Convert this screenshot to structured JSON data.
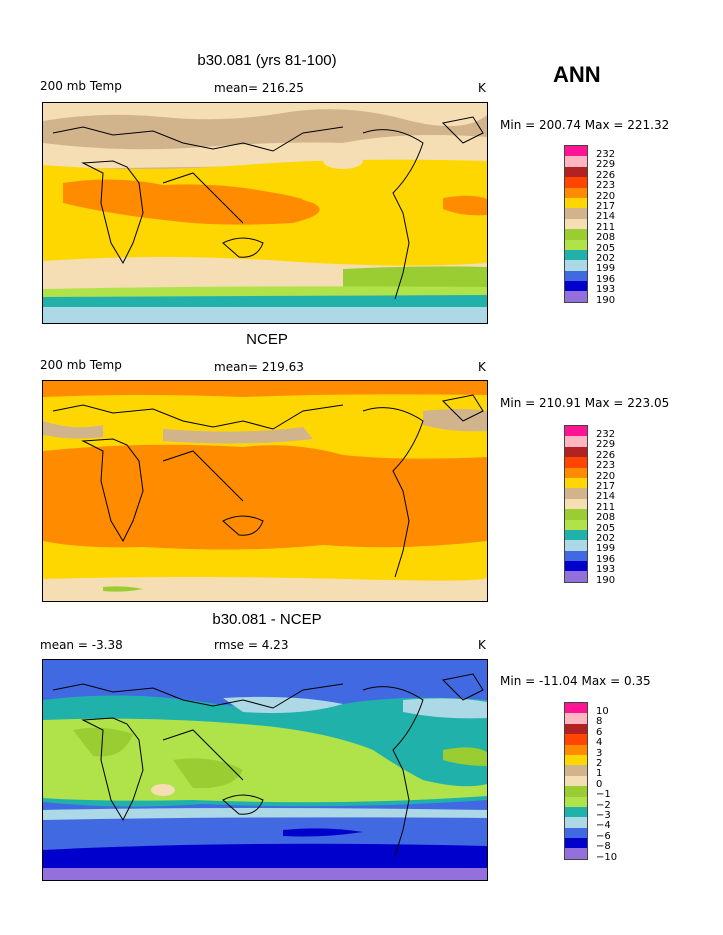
{
  "season": "ANN",
  "panels": [
    {
      "title": "b30.081 (yrs 81-100)",
      "left_label": "200 mb Temp",
      "center_label": "mean= 216.25",
      "right_label": "K",
      "minmax": "Min = 200.74 Max = 221.32",
      "ticks": [
        "232",
        "229",
        "226",
        "223",
        "220",
        "217",
        "214",
        "211",
        "208",
        "205",
        "202",
        "199",
        "196",
        "193",
        "190"
      ]
    },
    {
      "title": "NCEP",
      "left_label": "200 mb Temp",
      "center_label": "mean= 219.63",
      "right_label": "K",
      "minmax": "Min = 210.91 Max = 223.05",
      "ticks": [
        "232",
        "229",
        "226",
        "223",
        "220",
        "217",
        "214",
        "211",
        "208",
        "205",
        "202",
        "199",
        "196",
        "193",
        "190"
      ]
    },
    {
      "title": "b30.081 - NCEP",
      "left_label": "mean =   -3.38",
      "center_label": "rmse =    4.23",
      "right_label": "K",
      "minmax": "Min = -11.04 Max =    0.35",
      "ticks": [
        "10",
        "8",
        "6",
        "4",
        "3",
        "2",
        "1",
        "0",
        "−1",
        "−2",
        "−3",
        "−4",
        "−6",
        "−8",
        "−10"
      ]
    }
  ],
  "colorbar_colors": [
    "#ff1493",
    "#ffb6c1",
    "#b22222",
    "#ff4500",
    "#ff8c00",
    "#ffd700",
    "#d2b48c",
    "#f5deb3",
    "#9acd32",
    "#b0e24a",
    "#20b2aa",
    "#add8e6",
    "#4169e1",
    "#0000cd",
    "#9370db"
  ]
}
